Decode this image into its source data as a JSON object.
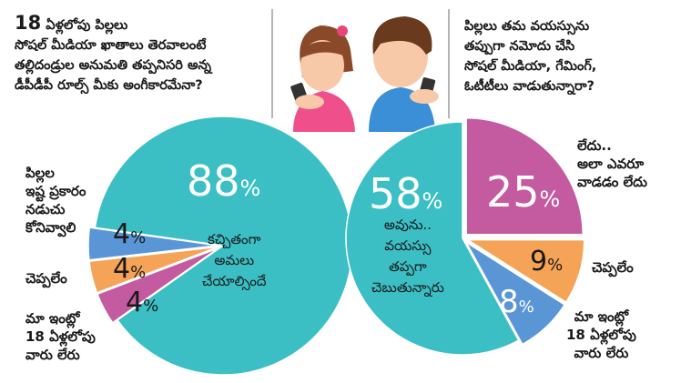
{
  "left_question": {
    "number": "18",
    "line1": "ఏళ్లలోపు పిల్లలు",
    "line2": "సోషల్ మీడియా ఖాతాలు తెరవాలంటే",
    "line3": "తల్లిదండ్రుల అనుమతి తప్పనిసరి అన్న",
    "line4": "డీపీడీపీ రూల్స్ మీకు అంగీకారమేనా?"
  },
  "right_question": {
    "line1": "పిల్లలు తమ వయస్సును",
    "line2": "తప్పుగా నమోదు చేసి",
    "line3": "సోషల్ మీడియా, గేమింగ్,",
    "line4": "ఓటీటీలు వాడుతున్నారా?"
  },
  "colors": {
    "teal": "#3bbfc4",
    "magenta": "#c45a9f",
    "orange": "#f5a356",
    "blue": "#5a96d6",
    "line": "#b5b5b5"
  },
  "chart_data": [
    {
      "type": "pie",
      "slices": [
        {
          "value": 88,
          "label_pct": "88",
          "label": [
            "కచ్చితంగా",
            "అమలు",
            "చేయాల్సిందే"
          ],
          "color": "#3bbfc4"
        },
        {
          "value": 4,
          "label_pct": "4",
          "label": [
            "పిల్లల",
            "ఇష్ట ప్రకారం",
            "నడుచు",
            "కోనివ్వాలి"
          ],
          "color": "#5a96d6"
        },
        {
          "value": 4,
          "label_pct": "4",
          "label": [
            "చెప్పలేం"
          ],
          "color": "#f5a356"
        },
        {
          "value": 4,
          "label_pct": "4",
          "label": [
            "మా ఇంట్లో",
            "18 ఏళ్లలోపు",
            "వారు లేరు"
          ],
          "color": "#c45a9f"
        }
      ]
    },
    {
      "type": "pie",
      "slices": [
        {
          "value": 58,
          "label_pct": "58",
          "label": [
            "అవును..",
            "వయస్సు",
            "తప్పగా",
            "చెబుతున్నారు"
          ],
          "color": "#3bbfc4"
        },
        {
          "value": 25,
          "label_pct": "25",
          "label": [
            "లేదు..",
            "అలా ఎవరూ",
            "వాడడం లేదు"
          ],
          "color": "#c45a9f"
        },
        {
          "value": 9,
          "label_pct": "9",
          "label": [
            "చెప్పలేం"
          ],
          "color": "#f5a356"
        },
        {
          "value": 8,
          "label_pct": "8",
          "label": [
            "మా ఇంట్లో",
            "18 ఏళ్లలోపు",
            "వారు లేరు"
          ],
          "color": "#5a96d6"
        }
      ]
    }
  ]
}
